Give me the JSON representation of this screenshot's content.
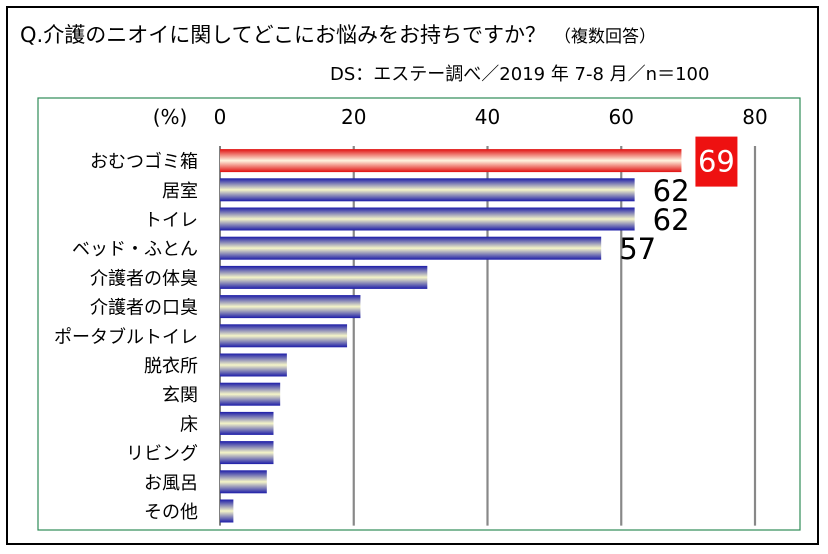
{
  "title": "Q.介護のニオイに関してどこにお悩みをお持ちですか？",
  "subtitle": "（複数回答）",
  "source": "DS：エステー調べ／2019 年 7-8 月／n＝100",
  "colors": {
    "plot_border": "#2e8b57",
    "grid": "#888888",
    "bar_blue": "#1c1ca8",
    "bar_light": "#f5f5c8",
    "highlight_red": "#e01010",
    "highlight_label_bg": "#ee1111"
  },
  "chart_data": {
    "type": "bar",
    "orientation": "horizontal",
    "ylabel": "(%)",
    "xlim": [
      0,
      80
    ],
    "xticks": [
      0,
      20,
      40,
      60,
      80
    ],
    "categories": [
      "おむつゴミ箱",
      "居室",
      "トイレ",
      "ベッド・ふとん",
      "介護者の体臭",
      "介護者の口臭",
      "ポータブルトイレ",
      "脱衣所",
      "玄関",
      "床",
      "リビング",
      "お風呂",
      "その他"
    ],
    "values": [
      69,
      62,
      62,
      57,
      31,
      21,
      19,
      10,
      9,
      8,
      8,
      7,
      2
    ],
    "data_labels": [
      "69",
      "62",
      "62",
      "57",
      "",
      "",
      "",
      "",
      "",
      "",
      "",
      "",
      ""
    ],
    "highlight_index": 0
  }
}
